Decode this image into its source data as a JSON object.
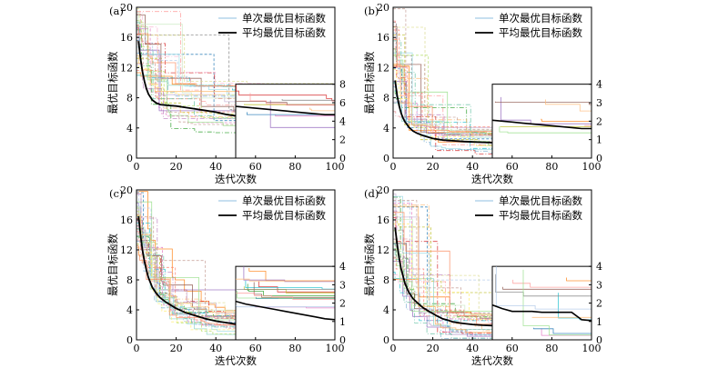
{
  "legend": {
    "single": "单次最优目标函数",
    "avg": "平均最优目标函数"
  },
  "axes": {
    "xlabel": "迭代次数",
    "ylabel": "最优目标函数"
  },
  "colors": {
    "avg": "#000000",
    "runs": [
      "#e377c2",
      "#2ca02c",
      "#ff7f0e",
      "#1f77b4",
      "#d62728",
      "#9467bd",
      "#bcbd22",
      "#17becf",
      "#8c564b",
      "#7f7f7f",
      "#ff9896",
      "#98df8a",
      "#aec7e8",
      "#ffbb78",
      "#c5b0d5",
      "#dbdb8d",
      "#f7b6d2",
      "#9edae5",
      "#c49c94",
      "#e7969c",
      "#8dd3c7",
      "#fb8072",
      "#80b1d3",
      "#fdb462",
      "#b3de69",
      "#bc80bd",
      "#ccebc5",
      "#ffed6f",
      "#66c2a5",
      "#fc8d62"
    ]
  },
  "chart_data": [
    {
      "type": "line",
      "panel": "(a)",
      "xlim": [
        0,
        100
      ],
      "ylim": [
        0,
        20
      ],
      "xticks": [
        0,
        20,
        40,
        60,
        80,
        100
      ],
      "yticks": [
        0,
        4,
        8,
        12,
        16,
        20
      ],
      "inset": {
        "xlim": [
          50,
          100
        ],
        "ylim": [
          0,
          8
        ],
        "yticks": [
          0,
          2,
          4,
          6,
          8
        ]
      },
      "runs": {
        "count": 30,
        "start": [
          10,
          20
        ],
        "final": [
          3,
          10
        ],
        "speed": [
          0.04,
          0.2
        ],
        "drops": [
          4,
          10
        ]
      },
      "series": [
        {
          "name": "平均最优目标函数",
          "x": [
            1,
            2,
            3,
            4,
            5,
            6,
            8,
            10,
            12,
            15,
            20,
            25,
            30,
            35,
            40,
            45,
            50,
            55,
            60,
            65,
            70,
            75,
            80,
            85,
            90,
            95,
            100
          ],
          "y": [
            15.5,
            13.2,
            11.5,
            10.2,
            9.2,
            8.5,
            7.7,
            7.3,
            7.1,
            7.0,
            6.9,
            6.7,
            6.5,
            6.3,
            6.1,
            5.8,
            5.6,
            5.5,
            5.4,
            5.3,
            5.2,
            5.1,
            5.0,
            4.9,
            4.8,
            4.7,
            4.7
          ]
        }
      ]
    },
    {
      "type": "line",
      "panel": "(b)",
      "xlim": [
        0,
        100
      ],
      "ylim": [
        0,
        20
      ],
      "xticks": [
        0,
        20,
        40,
        60,
        80,
        100
      ],
      "yticks": [
        0,
        4,
        8,
        12,
        16,
        20
      ],
      "inset": {
        "xlim": [
          50,
          100
        ],
        "ylim": [
          0,
          4
        ],
        "yticks": [
          0,
          1,
          2,
          3,
          4
        ]
      },
      "runs": {
        "count": 30,
        "start": [
          6,
          20
        ],
        "final": [
          0.2,
          4
        ],
        "speed": [
          0.08,
          0.3
        ],
        "drops": [
          5,
          12
        ]
      },
      "series": [
        {
          "name": "平均最优目标函数",
          "x": [
            1,
            2,
            3,
            4,
            5,
            6,
            8,
            10,
            12,
            15,
            20,
            25,
            30,
            35,
            40,
            45,
            50,
            55,
            60,
            65,
            70,
            75,
            80,
            85,
            90,
            95,
            100
          ],
          "y": [
            10.3,
            8.3,
            7.0,
            6.0,
            5.3,
            4.8,
            4.1,
            3.6,
            3.3,
            3.0,
            2.6,
            2.4,
            2.3,
            2.2,
            2.15,
            2.1,
            2.05,
            2.0,
            1.95,
            1.9,
            1.85,
            1.8,
            1.75,
            1.7,
            1.65,
            1.6,
            1.6
          ]
        }
      ]
    },
    {
      "type": "line",
      "panel": "(c)",
      "xlim": [
        0,
        100
      ],
      "ylim": [
        0,
        20
      ],
      "xticks": [
        0,
        20,
        40,
        60,
        80,
        100
      ],
      "yticks": [
        0,
        4,
        8,
        12,
        16,
        20
      ],
      "inset": {
        "xlim": [
          50,
          100
        ],
        "ylim": [
          0,
          4
        ],
        "yticks": [
          0,
          1,
          2,
          3,
          4
        ]
      },
      "runs": {
        "count": 30,
        "start": [
          12,
          20
        ],
        "final": [
          0.5,
          3.5
        ],
        "speed": [
          0.06,
          0.14
        ],
        "drops": [
          10,
          20
        ]
      },
      "series": [
        {
          "name": "平均最优目标函数",
          "x": [
            1,
            2,
            3,
            4,
            5,
            6,
            8,
            10,
            12,
            15,
            20,
            25,
            30,
            35,
            40,
            45,
            50,
            55,
            60,
            65,
            70,
            75,
            80,
            85,
            90,
            95,
            100
          ],
          "y": [
            16.5,
            14.0,
            12.0,
            10.5,
            9.3,
            8.3,
            7.0,
            6.2,
            5.6,
            5.0,
            4.2,
            3.6,
            3.2,
            2.8,
            2.5,
            2.3,
            2.1,
            1.95,
            1.85,
            1.75,
            1.65,
            1.55,
            1.45,
            1.35,
            1.25,
            1.15,
            1.1
          ]
        }
      ]
    },
    {
      "type": "line",
      "panel": "(d)",
      "xlim": [
        0,
        100
      ],
      "ylim": [
        0,
        20
      ],
      "xticks": [
        0,
        20,
        40,
        60,
        80,
        100
      ],
      "yticks": [
        0,
        4,
        8,
        12,
        16,
        20
      ],
      "inset": {
        "xlim": [
          50,
          100
        ],
        "ylim": [
          0,
          4
        ],
        "yticks": [
          0,
          1,
          2,
          3,
          4
        ]
      },
      "runs": {
        "count": 30,
        "start": [
          8,
          20
        ],
        "final": [
          0.3,
          3.5
        ],
        "speed": [
          0.04,
          0.2
        ],
        "drops": [
          4,
          10
        ]
      },
      "series": [
        {
          "name": "平均最优目标函数",
          "x": [
            1,
            2,
            3,
            4,
            6,
            8,
            10,
            12,
            15,
            18,
            20,
            22,
            25,
            28,
            30,
            35,
            40,
            45,
            50,
            55,
            60,
            70,
            75,
            80,
            90,
            95,
            100
          ],
          "y": [
            15.0,
            12.8,
            11.0,
            9.5,
            7.5,
            6.3,
            5.5,
            5.0,
            4.3,
            3.8,
            3.5,
            3.2,
            2.8,
            2.6,
            2.4,
            2.2,
            2.05,
            1.95,
            1.9,
            1.7,
            1.55,
            1.55,
            1.5,
            1.5,
            1.5,
            1.1,
            1.05
          ]
        }
      ]
    }
  ]
}
